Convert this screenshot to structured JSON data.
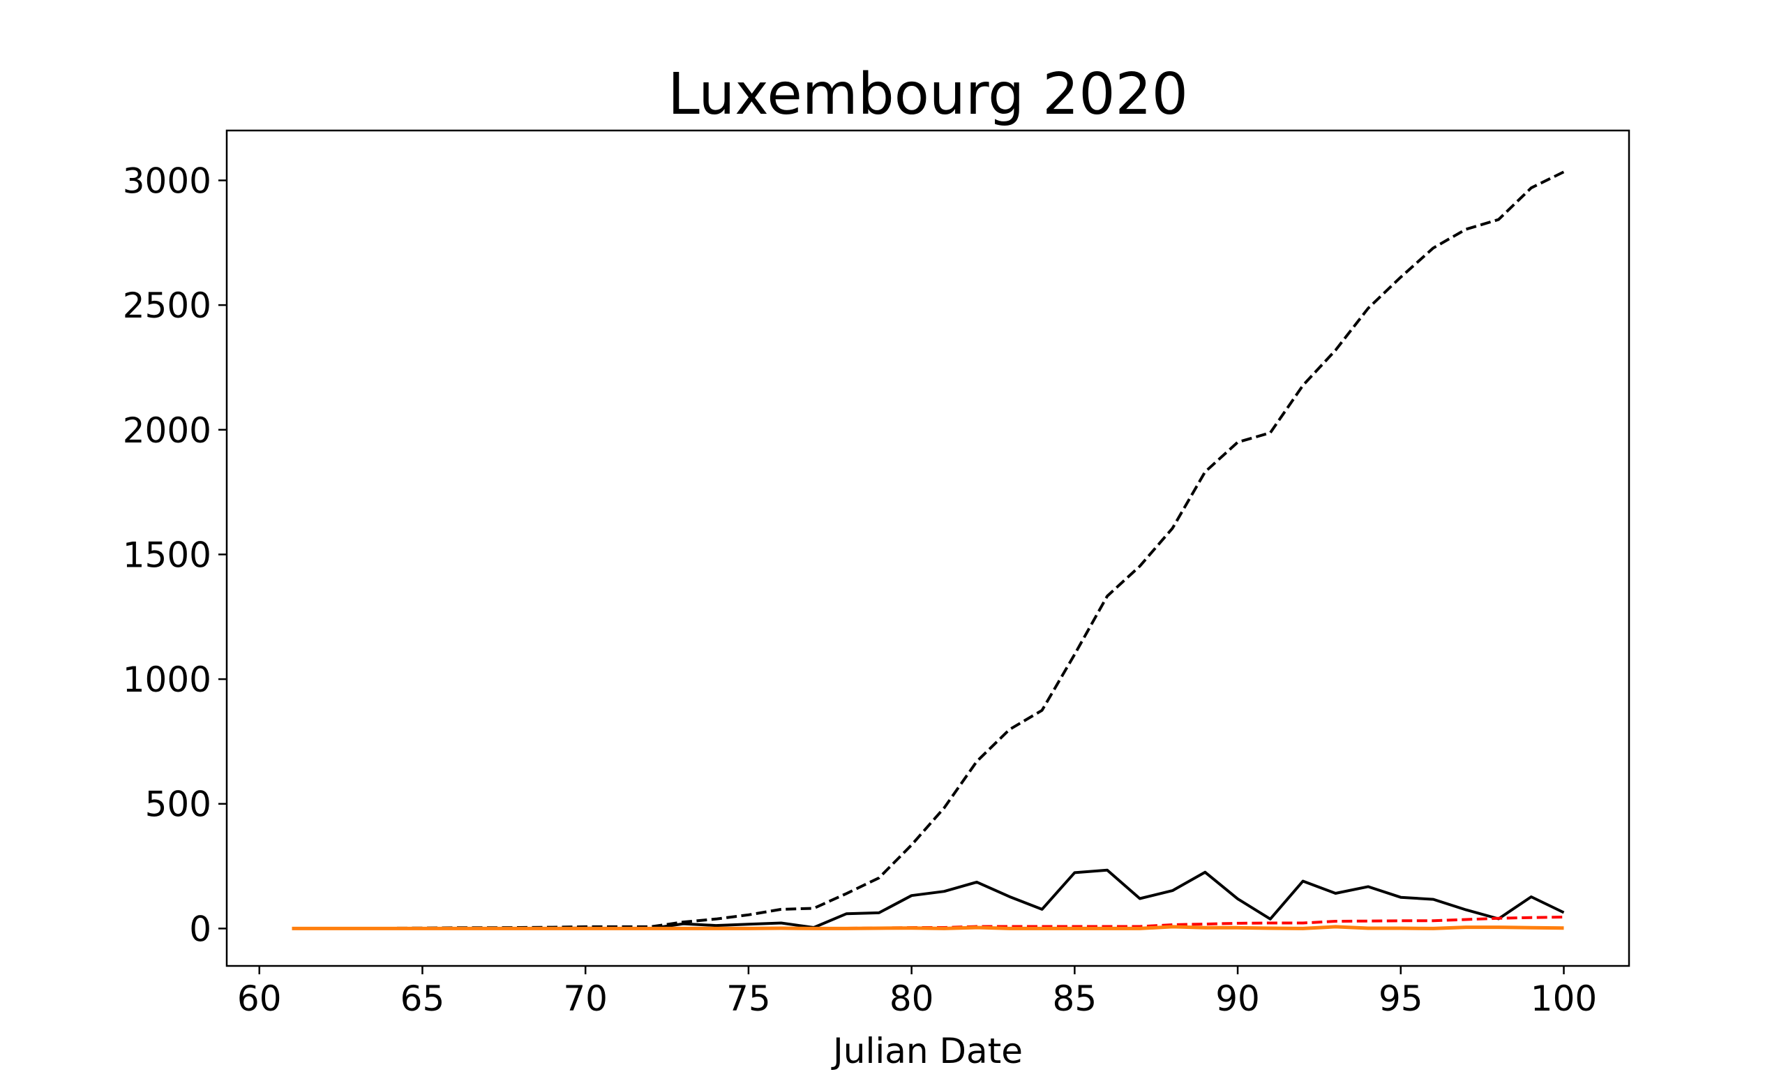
{
  "chart_data": {
    "type": "line",
    "title": "Luxembourg 2020",
    "xlabel": "Julian Date",
    "ylabel": "",
    "xlim": [
      59,
      102
    ],
    "ylim": [
      -150,
      3200
    ],
    "xticks": [
      60,
      65,
      70,
      75,
      80,
      85,
      90,
      95,
      100
    ],
    "yticks": [
      0,
      500,
      1000,
      1500,
      2000,
      2500,
      3000
    ],
    "grid": false,
    "legend": "none",
    "x": [
      61,
      62,
      63,
      64,
      65,
      66,
      67,
      68,
      69,
      70,
      71,
      72,
      73,
      74,
      75,
      76,
      77,
      78,
      79,
      80,
      81,
      82,
      83,
      84,
      85,
      86,
      87,
      88,
      89,
      90,
      91,
      92,
      93,
      94,
      95,
      96,
      97,
      98,
      99,
      100
    ],
    "series": [
      {
        "color": "#000000",
        "style": "dashed",
        "values": [
          1,
          1,
          1,
          1,
          2,
          3,
          3,
          4,
          5,
          7,
          7,
          7,
          26,
          38,
          55,
          77,
          81,
          140,
          203,
          335,
          484,
          670,
          798,
          875,
          1099,
          1333,
          1453,
          1605,
          1831,
          1950,
          1988,
          2178,
          2319,
          2487,
          2612,
          2729,
          2804,
          2843,
          2970,
          3034
        ]
      },
      {
        "color": "#000000",
        "style": "solid",
        "values": [
          0,
          0,
          0,
          0,
          1,
          1,
          0,
          1,
          1,
          2,
          0,
          0,
          19,
          12,
          17,
          22,
          4,
          59,
          63,
          132,
          149,
          186,
          128,
          77,
          224,
          234,
          120,
          152,
          226,
          119,
          38,
          190,
          141,
          168,
          125,
          117,
          75,
          39,
          127,
          64
        ]
      },
      {
        "color": "#ff0000",
        "style": "dashed",
        "values": [
          0,
          0,
          0,
          0,
          0,
          0,
          0,
          0,
          0,
          0,
          0,
          0,
          0,
          0,
          0,
          1,
          1,
          1,
          2,
          4,
          4,
          8,
          8,
          8,
          8,
          8,
          8,
          15,
          18,
          21,
          22,
          22,
          29,
          30,
          31,
          31,
          36,
          41,
          44,
          46
        ]
      },
      {
        "color": "#ff7f0e",
        "style": "solid",
        "values": [
          0,
          0,
          0,
          0,
          0,
          0,
          0,
          0,
          0,
          0,
          0,
          0,
          0,
          0,
          0,
          1,
          0,
          0,
          1,
          2,
          0,
          4,
          0,
          0,
          0,
          0,
          0,
          7,
          3,
          3,
          1,
          0,
          7,
          1,
          1,
          0,
          5,
          5,
          3,
          2
        ]
      }
    ]
  }
}
